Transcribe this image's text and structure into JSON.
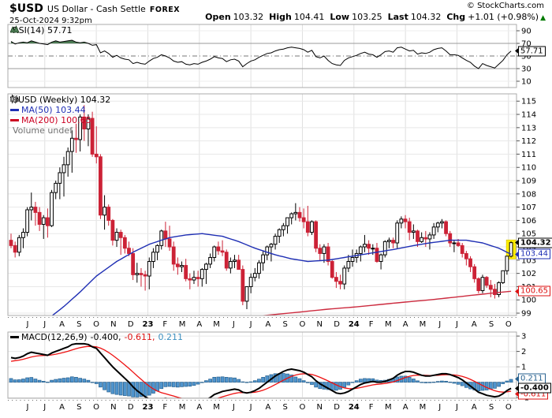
{
  "header": {
    "symbol": "$USD",
    "name": "US Dollar - Cash Settle",
    "exchange": "FOREX",
    "datetime": "25-Oct-2024 9:32pm",
    "copyright": "© StockCharts.com",
    "quote": {
      "open_label": "Open",
      "open": "103.32",
      "high_label": "High",
      "high": "104.41",
      "low_label": "Low",
      "low": "103.25",
      "last_label": "Last",
      "last": "104.32",
      "chg_label": "Chg",
      "chg": "+1.01 (+0.98%)",
      "arrow": "▲"
    }
  },
  "panels": {
    "rsi": {
      "legend": "RSI(14) 57.71",
      "value_label": "57.71"
    },
    "main": {
      "legend_symbol": "$USD (Weekly) 104.32",
      "legend_ma50": "MA(50) 103.44",
      "legend_ma200": "MA(200) 100.65",
      "legend_volume": "Volume undef",
      "last_label": "104.32",
      "ma50_label": "103.44",
      "ma200_label": "100.65"
    },
    "macd": {
      "legend_name": "MACD(12,26,9)",
      "legend_macd": "-0.400,",
      "legend_signal": "-0.611,",
      "legend_hist": "0.211",
      "macd_label": "-0.400",
      "signal_label": "-0.611",
      "hist_label": "0.211"
    }
  },
  "x_axis": {
    "labels": [
      "J",
      "J",
      "A",
      "S",
      "O",
      "N",
      "D",
      "23",
      "F",
      "M",
      "A",
      "M",
      "J",
      "J",
      "A",
      "S",
      "O",
      "N",
      "D",
      "24",
      "F",
      "M",
      "A",
      "M",
      "J",
      "J",
      "A",
      "S",
      "O"
    ],
    "bold_indices": [
      7,
      19
    ]
  },
  "colors": {
    "candle_up_fill": "#ffffff",
    "candle_up_stroke": "#000000",
    "candle_down": "#cc2236",
    "ma50": "#1f2fb4",
    "ma200": "#cc2a3e",
    "macd_line": "#000000",
    "signal_line": "#ee1111",
    "hist_fill": "#4f94cd",
    "hist_stroke": "#27618f",
    "rsi_line": "#000000",
    "rsi_fill": "#4d7c55",
    "grid": "#e8e8e8",
    "vgrid": "#e0e0e0",
    "border": "#ababab",
    "highlight": "#ffee00",
    "up_arrow": "#007a00"
  },
  "chart_data": [
    {
      "type": "line",
      "title": "RSI(14)",
      "last": 57.71,
      "ylim": [
        0,
        100
      ],
      "levels": [
        70,
        50,
        30
      ],
      "yticks": [
        90,
        70,
        50,
        30,
        10
      ],
      "values": [
        73,
        69,
        71,
        72,
        71,
        74,
        72,
        70,
        69,
        68,
        72,
        74,
        72,
        73,
        74,
        75,
        72,
        71,
        72,
        70,
        67,
        68,
        55,
        58,
        54,
        48,
        51,
        47,
        45,
        44,
        38,
        40,
        38,
        37,
        42,
        46,
        48,
        52,
        50,
        47,
        42,
        40,
        41,
        37,
        36,
        38,
        37,
        40,
        42,
        45,
        49,
        47,
        46,
        41,
        44,
        45,
        42,
        33,
        38,
        42,
        44,
        48,
        51,
        54,
        55,
        58,
        60,
        61,
        63,
        64,
        63,
        62,
        60,
        56,
        59,
        49,
        47,
        50,
        43,
        38,
        36,
        35,
        43,
        47,
        49,
        51,
        54,
        56,
        53,
        52,
        48,
        52,
        57,
        58,
        56,
        63,
        64,
        61,
        58,
        59,
        53,
        55,
        54,
        56,
        60,
        62,
        63,
        58,
        52,
        52,
        51,
        47,
        43,
        40,
        34,
        30,
        38,
        35,
        33,
        31,
        37,
        43,
        52,
        57.71
      ]
    },
    {
      "type": "candlestick",
      "title": "$USD (Weekly)",
      "last": 104.32,
      "ylim": [
        99,
        115
      ],
      "yticks": [
        115,
        114,
        113,
        112,
        111,
        110,
        109,
        108,
        107,
        106,
        105,
        104,
        103,
        102,
        101,
        100,
        99
      ],
      "highlight_last": true,
      "ohlc": [
        [
          104.5,
          105.0,
          103.9,
          104.1
        ],
        [
          104.1,
          104.4,
          103.2,
          103.6
        ],
        [
          103.6,
          104.9,
          103.3,
          104.7
        ],
        [
          104.7,
          105.4,
          103.9,
          105.1
        ],
        [
          105.1,
          107.0,
          104.8,
          106.8
        ],
        [
          106.8,
          108.1,
          106.0,
          107.0
        ],
        [
          107.0,
          107.4,
          105.6,
          106.6
        ],
        [
          106.6,
          107.0,
          105.2,
          105.7
        ],
        [
          105.7,
          106.4,
          104.6,
          106.2
        ],
        [
          106.2,
          106.9,
          104.7,
          105.6
        ],
        [
          105.6,
          108.3,
          105.5,
          108.1
        ],
        [
          108.1,
          109.0,
          107.6,
          108.8
        ],
        [
          108.8,
          110.0,
          107.6,
          109.6
        ],
        [
          109.6,
          110.8,
          107.8,
          110.2
        ],
        [
          110.2,
          111.5,
          109.3,
          111.2
        ],
        [
          111.2,
          112.8,
          109.6,
          112.2
        ],
        [
          112.2,
          113.3,
          111.1,
          112.1
        ],
        [
          112.1,
          114.0,
          111.2,
          113.8
        ],
        [
          113.8,
          114.7,
          112.0,
          112.9
        ],
        [
          112.9,
          114.0,
          111.6,
          113.7
        ],
        [
          113.7,
          114.2,
          110.8,
          111.0
        ],
        [
          111.0,
          113.1,
          110.3,
          110.8
        ],
        [
          110.8,
          111.0,
          106.1,
          106.4
        ],
        [
          106.4,
          107.9,
          105.3,
          107.0
        ],
        [
          107.0,
          107.2,
          105.6,
          106.0
        ],
        [
          106.0,
          106.1,
          104.1,
          104.5
        ],
        [
          104.5,
          105.4,
          104.0,
          105.1
        ],
        [
          105.1,
          105.3,
          103.4,
          104.7
        ],
        [
          104.7,
          104.9,
          103.5,
          103.9
        ],
        [
          103.9,
          104.4,
          103.3,
          103.5
        ],
        [
          103.5,
          103.9,
          101.5,
          101.9
        ],
        [
          101.9,
          102.8,
          101.3,
          102.0
        ],
        [
          102.0,
          102.4,
          101.0,
          101.9
        ],
        [
          101.9,
          102.2,
          100.7,
          101.8
        ],
        [
          101.8,
          103.2,
          100.8,
          102.9
        ],
        [
          102.9,
          103.9,
          102.4,
          103.6
        ],
        [
          103.6,
          104.2,
          103.0,
          104.1
        ],
        [
          104.1,
          105.3,
          103.8,
          105.2
        ],
        [
          105.2,
          105.9,
          104.0,
          104.6
        ],
        [
          104.6,
          105.6,
          103.7,
          104.0
        ],
        [
          104.0,
          104.4,
          102.2,
          102.7
        ],
        [
          102.7,
          103.2,
          101.9,
          102.5
        ],
        [
          102.5,
          102.9,
          102.1,
          102.6
        ],
        [
          102.6,
          103.1,
          101.4,
          101.6
        ],
        [
          101.6,
          102.0,
          100.8,
          101.5
        ],
        [
          101.5,
          102.2,
          101.2,
          101.7
        ],
        [
          101.7,
          102.2,
          101.0,
          101.6
        ],
        [
          101.6,
          102.4,
          101.0,
          102.3
        ],
        [
          102.3,
          102.8,
          101.2,
          102.7
        ],
        [
          102.7,
          103.5,
          102.4,
          103.2
        ],
        [
          103.2,
          104.1,
          102.9,
          104.0
        ],
        [
          104.0,
          104.4,
          103.4,
          103.7
        ],
        [
          103.7,
          104.5,
          103.3,
          103.6
        ],
        [
          103.6,
          103.8,
          102.2,
          102.4
        ],
        [
          102.4,
          103.2,
          102.0,
          102.9
        ],
        [
          102.9,
          103.4,
          102.4,
          103.0
        ],
        [
          103.0,
          103.4,
          102.3,
          102.3
        ],
        [
          102.3,
          102.6,
          99.6,
          99.9
        ],
        [
          99.9,
          101.0,
          99.3,
          101.0
        ],
        [
          101.0,
          102.0,
          100.5,
          101.7
        ],
        [
          101.7,
          102.4,
          101.4,
          102.0
        ],
        [
          102.0,
          103.0,
          101.6,
          102.8
        ],
        [
          102.8,
          103.7,
          102.2,
          103.4
        ],
        [
          103.4,
          104.1,
          103.0,
          104.0
        ],
        [
          104.0,
          104.3,
          102.9,
          104.2
        ],
        [
          104.2,
          105.0,
          103.8,
          104.8
        ],
        [
          104.8,
          105.4,
          104.3,
          105.3
        ],
        [
          105.3,
          105.8,
          104.8,
          105.6
        ],
        [
          105.6,
          106.2,
          105.0,
          106.2
        ],
        [
          106.2,
          106.6,
          105.7,
          106.5
        ],
        [
          106.5,
          107.3,
          106.0,
          106.6
        ],
        [
          106.6,
          107.0,
          105.9,
          106.2
        ],
        [
          106.2,
          106.9,
          105.4,
          105.9
        ],
        [
          105.9,
          107.1,
          104.8,
          105.1
        ],
        [
          105.1,
          106.0,
          104.9,
          105.9
        ],
        [
          105.9,
          106.0,
          103.6,
          103.9
        ],
        [
          103.9,
          104.2,
          103.0,
          103.5
        ],
        [
          103.5,
          104.2,
          102.8,
          104.0
        ],
        [
          104.0,
          104.3,
          102.6,
          102.9
        ],
        [
          102.9,
          103.0,
          101.6,
          101.7
        ],
        [
          101.7,
          102.1,
          100.9,
          101.4
        ],
        [
          101.4,
          101.9,
          100.8,
          101.2
        ],
        [
          101.2,
          102.6,
          100.8,
          102.4
        ],
        [
          102.4,
          103.4,
          102.1,
          102.9
        ],
        [
          102.9,
          103.8,
          102.5,
          103.2
        ],
        [
          103.2,
          103.8,
          102.8,
          103.5
        ],
        [
          103.5,
          104.1,
          102.9,
          104.0
        ],
        [
          104.0,
          104.9,
          103.6,
          104.2
        ],
        [
          104.2,
          104.5,
          103.4,
          103.9
        ],
        [
          103.9,
          104.2,
          103.4,
          103.9
        ],
        [
          103.9,
          104.3,
          102.8,
          102.9
        ],
        [
          102.9,
          103.5,
          102.3,
          103.4
        ],
        [
          103.4,
          104.5,
          103.2,
          104.4
        ],
        [
          104.4,
          104.7,
          103.9,
          104.5
        ],
        [
          104.5,
          104.7,
          103.9,
          104.3
        ],
        [
          104.3,
          106.0,
          103.9,
          105.8
        ],
        [
          105.8,
          106.3,
          105.4,
          106.1
        ],
        [
          106.1,
          106.4,
          105.4,
          105.9
        ],
        [
          105.9,
          106.2,
          104.5,
          105.1
        ],
        [
          105.1,
          105.7,
          104.6,
          105.2
        ],
        [
          105.2,
          105.3,
          104.0,
          104.4
        ],
        [
          104.4,
          105.1,
          104.3,
          104.7
        ],
        [
          104.7,
          105.2,
          104.0,
          104.6
        ],
        [
          104.6,
          105.1,
          103.8,
          104.9
        ],
        [
          104.9,
          105.8,
          104.6,
          105.5
        ],
        [
          105.5,
          105.9,
          105.1,
          105.8
        ],
        [
          105.8,
          106.1,
          105.4,
          105.9
        ],
        [
          105.9,
          106.0,
          104.8,
          105.0
        ],
        [
          105.0,
          105.2,
          104.0,
          104.3
        ],
        [
          104.3,
          104.5,
          103.6,
          104.3
        ],
        [
          104.3,
          104.6,
          104.0,
          104.1
        ],
        [
          104.1,
          104.3,
          103.2,
          103.5
        ],
        [
          103.5,
          103.7,
          102.6,
          103.1
        ],
        [
          103.1,
          103.3,
          102.1,
          102.5
        ],
        [
          102.5,
          102.7,
          101.3,
          101.6
        ],
        [
          101.6,
          101.7,
          100.5,
          100.7
        ],
        [
          100.7,
          101.9,
          100.5,
          101.7
        ],
        [
          101.7,
          101.8,
          100.9,
          101.1
        ],
        [
          101.1,
          101.5,
          100.2,
          100.8
        ],
        [
          100.8,
          101.2,
          100.1,
          100.4
        ],
        [
          100.4,
          101.4,
          100.2,
          101.3
        ],
        [
          101.3,
          102.2,
          101.2,
          102.2
        ],
        [
          102.2,
          103.3,
          101.9,
          103.3
        ],
        [
          103.3,
          104.41,
          103.2,
          104.32
        ]
      ],
      "ma50": {
        "period": 50,
        "last": 103.44,
        "anchors": [
          [
            0,
            96.8
          ],
          [
            8,
            98.3
          ],
          [
            13,
            99.5
          ],
          [
            17,
            100.6
          ],
          [
            21,
            101.8
          ],
          [
            26,
            102.9
          ],
          [
            30,
            103.6
          ],
          [
            34,
            104.2
          ],
          [
            39,
            104.7
          ],
          [
            43,
            104.9
          ],
          [
            47,
            105.0
          ],
          [
            52,
            104.8
          ],
          [
            56,
            104.4
          ],
          [
            60,
            103.9
          ],
          [
            65,
            103.4
          ],
          [
            69,
            103.1
          ],
          [
            73,
            102.9
          ],
          [
            78,
            103.0
          ],
          [
            82,
            103.2
          ],
          [
            86,
            103.4
          ],
          [
            90,
            103.6
          ],
          [
            94,
            103.8
          ],
          [
            99,
            104.1
          ],
          [
            103,
            104.3
          ],
          [
            108,
            104.5
          ],
          [
            112,
            104.5
          ],
          [
            116,
            104.3
          ],
          [
            120,
            103.9
          ],
          [
            123,
            103.44
          ]
        ]
      },
      "ma200": {
        "period": 200,
        "last": 100.65,
        "anchors": [
          [
            56,
            98.6
          ],
          [
            60,
            98.75
          ],
          [
            65,
            98.9
          ],
          [
            70,
            99.05
          ],
          [
            78,
            99.3
          ],
          [
            86,
            99.5
          ],
          [
            94,
            99.75
          ],
          [
            103,
            100.0
          ],
          [
            112,
            100.3
          ],
          [
            118,
            100.5
          ],
          [
            123,
            100.65
          ]
        ]
      }
    },
    {
      "type": "macd-histogram",
      "title": "MACD(12,26,9)",
      "last": {
        "macd": -0.4,
        "signal": -0.611,
        "hist": 0.211
      },
      "ylim": [
        -1.3,
        3.3
      ],
      "yticks": [
        3,
        2,
        1,
        -1
      ],
      "signal_rule": "EMA(9) of macd values",
      "macd_values": [
        1.6,
        1.55,
        1.6,
        1.7,
        1.85,
        1.95,
        1.9,
        1.85,
        1.8,
        1.75,
        1.9,
        2.0,
        2.1,
        2.2,
        2.3,
        2.45,
        2.5,
        2.5,
        2.5,
        2.45,
        2.3,
        2.2,
        1.9,
        1.6,
        1.3,
        1.0,
        0.75,
        0.5,
        0.25,
        0.0,
        -0.3,
        -0.55,
        -0.75,
        -0.95,
        -1.1,
        -1.15,
        -1.15,
        -1.1,
        -1.05,
        -1.1,
        -1.2,
        -1.3,
        -1.35,
        -1.4,
        -1.45,
        -1.45,
        -1.4,
        -1.3,
        -1.15,
        -1.0,
        -0.8,
        -0.7,
        -0.6,
        -0.55,
        -0.5,
        -0.45,
        -0.5,
        -0.65,
        -0.7,
        -0.65,
        -0.55,
        -0.4,
        -0.2,
        0.0,
        0.2,
        0.4,
        0.55,
        0.7,
        0.8,
        0.85,
        0.8,
        0.75,
        0.65,
        0.5,
        0.35,
        0.1,
        -0.1,
        -0.25,
        -0.4,
        -0.55,
        -0.7,
        -0.75,
        -0.7,
        -0.6,
        -0.45,
        -0.3,
        -0.15,
        -0.05,
        0.0,
        0.05,
        0.0,
        0.0,
        0.05,
        0.15,
        0.25,
        0.45,
        0.6,
        0.7,
        0.7,
        0.65,
        0.55,
        0.45,
        0.4,
        0.4,
        0.45,
        0.5,
        0.55,
        0.55,
        0.5,
        0.4,
        0.3,
        0.15,
        -0.05,
        -0.25,
        -0.45,
        -0.65,
        -0.75,
        -0.85,
        -0.9,
        -0.95,
        -0.9,
        -0.75,
        -0.55,
        -0.4
      ]
    }
  ]
}
